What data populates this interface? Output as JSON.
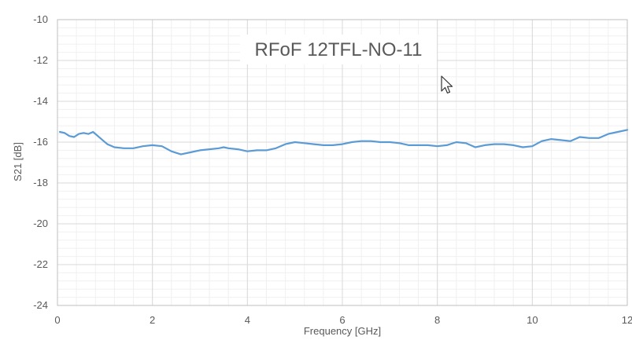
{
  "chart_data": {
    "type": "line",
    "title": "RFoF 12TFL-NO-11",
    "xlabel": "Frequency [GHz]",
    "ylabel": "S21 [dB]",
    "xlim": [
      0,
      12
    ],
    "ylim": [
      -24,
      -10
    ],
    "xticks": [
      "0",
      "2",
      "4",
      "6",
      "8",
      "10",
      "12"
    ],
    "yticks": [
      "-10",
      "-12",
      "-14",
      "-16",
      "-18",
      "-20",
      "-22",
      "-24"
    ],
    "grid": true,
    "minor_grid": true,
    "legend": "none",
    "line_color": "#5B9BD5",
    "series": [
      {
        "x": [
          0.05,
          0.15,
          0.25,
          0.35,
          0.45,
          0.55,
          0.65,
          0.75,
          0.85,
          0.95,
          1.05,
          1.2,
          1.4,
          1.6,
          1.8,
          2.0,
          2.2,
          2.4,
          2.6,
          2.8,
          3.0,
          3.2,
          3.4,
          3.5,
          3.6,
          3.8,
          4.0,
          4.2,
          4.4,
          4.6,
          4.8,
          5.0,
          5.2,
          5.4,
          5.6,
          5.8,
          6.0,
          6.2,
          6.4,
          6.6,
          6.8,
          7.0,
          7.2,
          7.4,
          7.6,
          7.8,
          8.0,
          8.2,
          8.4,
          8.6,
          8.8,
          9.0,
          9.2,
          9.4,
          9.6,
          9.8,
          10.0,
          10.2,
          10.4,
          10.6,
          10.8,
          11.0,
          11.2,
          11.4,
          11.6,
          11.8,
          12.0
        ],
        "y": [
          -15.5,
          -15.55,
          -15.7,
          -15.75,
          -15.6,
          -15.55,
          -15.6,
          -15.5,
          -15.7,
          -15.9,
          -16.1,
          -16.25,
          -16.3,
          -16.3,
          -16.2,
          -16.15,
          -16.2,
          -16.45,
          -16.6,
          -16.5,
          -16.4,
          -16.35,
          -16.3,
          -16.25,
          -16.3,
          -16.35,
          -16.45,
          -16.4,
          -16.4,
          -16.3,
          -16.1,
          -16.0,
          -16.05,
          -16.1,
          -16.15,
          -16.15,
          -16.1,
          -16.0,
          -15.95,
          -15.95,
          -16.0,
          -16.0,
          -16.05,
          -16.15,
          -16.15,
          -16.15,
          -16.2,
          -16.15,
          -16.0,
          -16.05,
          -16.25,
          -16.15,
          -16.1,
          -16.1,
          -16.15,
          -16.25,
          -16.2,
          -15.95,
          -15.85,
          -15.9,
          -15.95,
          -15.75,
          -15.8,
          -15.8,
          -15.6,
          -15.5,
          -15.4
        ]
      }
    ]
  }
}
